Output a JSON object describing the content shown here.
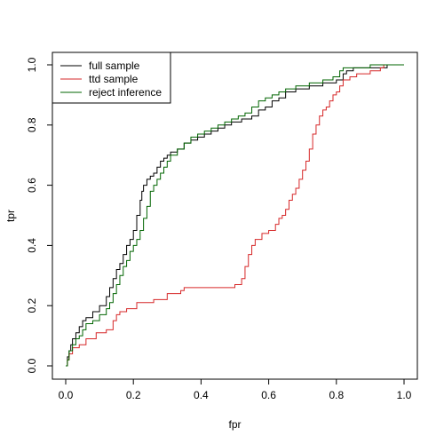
{
  "chart_data": {
    "type": "line",
    "title": "",
    "xlabel": "fpr",
    "ylabel": "tpr",
    "xlim": [
      0,
      1
    ],
    "ylim": [
      0,
      1
    ],
    "x_ticks": [
      0,
      0.2,
      0.4,
      0.6,
      0.8,
      1
    ],
    "x_tick_labels": [
      "0.0",
      "0.2",
      "0.4",
      "0.6",
      "0.8",
      "1.0"
    ],
    "y_ticks": [
      0,
      0.2,
      0.4,
      0.6,
      0.8,
      1
    ],
    "y_tick_labels": [
      "0.0",
      "0.2",
      "0.4",
      "0.6",
      "0.8",
      "1.0"
    ],
    "grid": false,
    "legend_position": "top-left",
    "series": [
      {
        "name": "full sample",
        "color": "#000000",
        "step": true,
        "x": [
          0,
          0.005,
          0.01,
          0.015,
          0.02,
          0.03,
          0.04,
          0.05,
          0.06,
          0.08,
          0.1,
          0.12,
          0.13,
          0.14,
          0.15,
          0.16,
          0.17,
          0.18,
          0.19,
          0.2,
          0.21,
          0.22,
          0.225,
          0.23,
          0.24,
          0.25,
          0.26,
          0.27,
          0.28,
          0.29,
          0.3,
          0.31,
          0.33,
          0.35,
          0.37,
          0.39,
          0.41,
          0.43,
          0.45,
          0.47,
          0.49,
          0.52,
          0.55,
          0.57,
          0.59,
          0.61,
          0.63,
          0.65,
          0.68,
          0.72,
          0.76,
          0.8,
          0.82,
          0.83,
          0.85,
          0.9,
          0.95,
          1
        ],
        "y": [
          0,
          0.03,
          0.05,
          0.07,
          0.09,
          0.11,
          0.13,
          0.15,
          0.16,
          0.18,
          0.2,
          0.23,
          0.26,
          0.29,
          0.32,
          0.34,
          0.37,
          0.4,
          0.42,
          0.45,
          0.5,
          0.55,
          0.58,
          0.6,
          0.62,
          0.63,
          0.64,
          0.66,
          0.68,
          0.69,
          0.7,
          0.71,
          0.72,
          0.74,
          0.75,
          0.76,
          0.77,
          0.78,
          0.79,
          0.8,
          0.81,
          0.82,
          0.83,
          0.85,
          0.86,
          0.88,
          0.89,
          0.91,
          0.92,
          0.93,
          0.94,
          0.95,
          0.97,
          0.98,
          0.99,
          0.99,
          1,
          1
        ]
      },
      {
        "name": "ttd sample",
        "color": "#d62728",
        "step": true,
        "x": [
          0,
          0.005,
          0.01,
          0.02,
          0.04,
          0.06,
          0.09,
          0.12,
          0.14,
          0.15,
          0.16,
          0.18,
          0.21,
          0.26,
          0.3,
          0.34,
          0.35,
          0.36,
          0.5,
          0.52,
          0.53,
          0.54,
          0.55,
          0.56,
          0.58,
          0.6,
          0.62,
          0.63,
          0.64,
          0.65,
          0.66,
          0.67,
          0.68,
          0.69,
          0.7,
          0.71,
          0.72,
          0.73,
          0.74,
          0.75,
          0.76,
          0.77,
          0.78,
          0.79,
          0.8,
          0.81,
          0.82,
          0.84,
          0.86,
          0.9,
          0.93,
          0.94,
          0.95,
          0.96,
          1
        ],
        "y": [
          0,
          0.02,
          0.04,
          0.06,
          0.07,
          0.09,
          0.11,
          0.12,
          0.15,
          0.17,
          0.18,
          0.19,
          0.21,
          0.22,
          0.24,
          0.25,
          0.26,
          0.26,
          0.27,
          0.29,
          0.33,
          0.37,
          0.4,
          0.42,
          0.44,
          0.45,
          0.47,
          0.49,
          0.5,
          0.52,
          0.55,
          0.57,
          0.59,
          0.62,
          0.65,
          0.68,
          0.72,
          0.77,
          0.8,
          0.83,
          0.85,
          0.86,
          0.88,
          0.9,
          0.91,
          0.93,
          0.95,
          0.96,
          0.97,
          0.98,
          0.99,
          1,
          1,
          1,
          1
        ]
      },
      {
        "name": "reject inference",
        "color": "#006400",
        "step": true,
        "x": [
          0,
          0.005,
          0.01,
          0.02,
          0.03,
          0.04,
          0.05,
          0.06,
          0.08,
          0.1,
          0.12,
          0.13,
          0.14,
          0.15,
          0.16,
          0.17,
          0.18,
          0.19,
          0.2,
          0.21,
          0.22,
          0.23,
          0.24,
          0.25,
          0.26,
          0.27,
          0.28,
          0.29,
          0.3,
          0.31,
          0.33,
          0.35,
          0.37,
          0.39,
          0.41,
          0.43,
          0.45,
          0.47,
          0.49,
          0.51,
          0.53,
          0.55,
          0.57,
          0.59,
          0.61,
          0.63,
          0.65,
          0.68,
          0.72,
          0.76,
          0.79,
          0.81,
          0.82,
          0.85,
          0.9,
          0.95,
          1
        ],
        "y": [
          0,
          0.02,
          0.05,
          0.07,
          0.09,
          0.1,
          0.12,
          0.14,
          0.15,
          0.17,
          0.19,
          0.21,
          0.24,
          0.27,
          0.3,
          0.33,
          0.35,
          0.38,
          0.4,
          0.42,
          0.45,
          0.49,
          0.53,
          0.58,
          0.6,
          0.62,
          0.64,
          0.66,
          0.68,
          0.7,
          0.72,
          0.74,
          0.76,
          0.77,
          0.78,
          0.79,
          0.8,
          0.81,
          0.82,
          0.83,
          0.84,
          0.86,
          0.88,
          0.89,
          0.9,
          0.91,
          0.92,
          0.93,
          0.94,
          0.95,
          0.96,
          0.98,
          0.99,
          0.99,
          1,
          1,
          1
        ]
      }
    ]
  }
}
